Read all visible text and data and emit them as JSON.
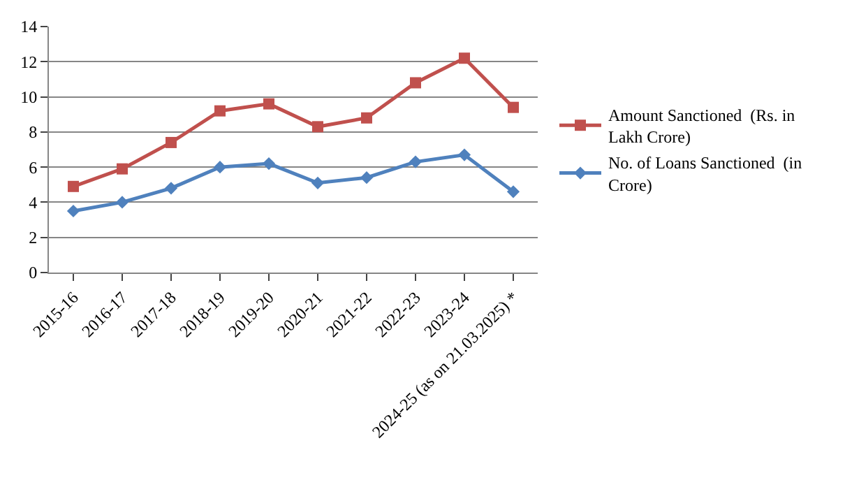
{
  "chart_data": {
    "type": "line",
    "categories": [
      "2015-16",
      "2016-17",
      "2017-18",
      "2018-19",
      "2019-20",
      "2020-21",
      "2021-22",
      "2022-23",
      "2023-24",
      "2024-25 (as on 21.03.2025) *"
    ],
    "series": [
      {
        "name": "Amount Sanctioned  (Rs. in Lakh Crore)",
        "color": "#c0504d",
        "marker": "square",
        "values": [
          4.9,
          5.9,
          7.4,
          9.2,
          9.6,
          8.3,
          8.8,
          10.8,
          12.2,
          9.4
        ]
      },
      {
        "name": "No. of Loans Sanctioned  (in Crore)",
        "color": "#4f81bd",
        "marker": "diamond",
        "values": [
          3.5,
          4.0,
          4.8,
          6.0,
          6.2,
          5.1,
          5.4,
          6.3,
          6.7,
          4.6
        ]
      }
    ],
    "ylim": [
      0,
      14
    ],
    "yticks": [
      0,
      2,
      4,
      6,
      8,
      10,
      12,
      14
    ],
    "grid": "y",
    "legend": "right",
    "line_style": "solid"
  }
}
